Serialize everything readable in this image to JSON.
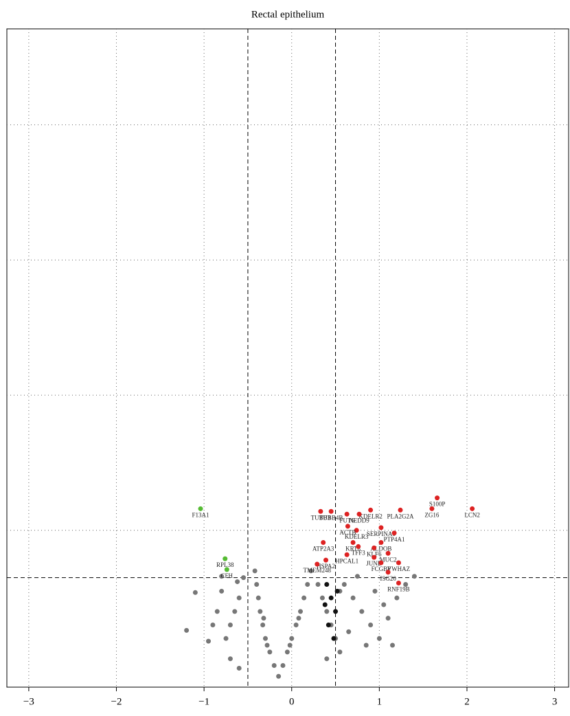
{
  "chart_data": {
    "type": "scatter",
    "title": "Rectal epithelium",
    "xlim": [
      -3.25,
      3.16
    ],
    "ylim": [
      -0.16,
      4.71
    ],
    "xticks": [
      {
        "value": -3,
        "label": "−3"
      },
      {
        "value": -2,
        "label": "−2"
      },
      {
        "value": -1,
        "label": "−1"
      },
      0,
      1,
      2,
      3
    ],
    "ygrid": [
      1,
      2,
      3,
      4
    ],
    "xthresholds": [
      -0.5,
      0.5
    ],
    "ythreshold": 0.65,
    "grid": true,
    "series": [
      {
        "color": "#777777",
        "x": [
          -0.15,
          -0.2,
          -0.1,
          -0.25,
          -0.05,
          -0.3,
          0.0,
          -0.33,
          0.05,
          -0.36,
          0.1,
          -0.38,
          0.14,
          -0.4,
          0.18,
          -0.42,
          0.22,
          -0.28,
          -0.02,
          -0.32,
          0.08,
          -0.55,
          -0.6,
          -0.65,
          -0.7,
          -0.75,
          -0.8,
          -0.85,
          -0.9,
          -0.95,
          -0.7,
          -0.6,
          -1.1,
          -1.2,
          -0.62,
          -0.8,
          0.3,
          0.35,
          0.4,
          0.45,
          0.5,
          0.55,
          0.6,
          0.7,
          0.8,
          0.9,
          1.0,
          1.1,
          1.2,
          1.15,
          1.3,
          1.4,
          0.55,
          0.75,
          0.95,
          0.65,
          0.85,
          1.05,
          0.4
        ],
        "y": [
          -0.08,
          0.0,
          0.0,
          0.1,
          0.1,
          0.2,
          0.2,
          0.3,
          0.3,
          0.4,
          0.4,
          0.5,
          0.5,
          0.6,
          0.6,
          0.7,
          0.7,
          0.15,
          0.15,
          0.35,
          0.35,
          0.65,
          0.5,
          0.4,
          0.3,
          0.2,
          0.55,
          0.4,
          0.3,
          0.18,
          0.05,
          -0.02,
          0.54,
          0.26,
          0.62,
          0.66,
          0.6,
          0.5,
          0.4,
          0.3,
          0.2,
          0.1,
          0.6,
          0.5,
          0.4,
          0.3,
          0.2,
          0.35,
          0.5,
          0.15,
          0.6,
          0.66,
          0.55,
          0.66,
          0.55,
          0.25,
          0.15,
          0.45,
          0.05
        ]
      },
      {
        "color": "#111111",
        "x": [
          0.4,
          0.45,
          0.5,
          0.42,
          0.48,
          0.52,
          0.38
        ],
        "y": [
          0.6,
          0.5,
          0.4,
          0.3,
          0.2,
          0.55,
          0.45
        ]
      },
      {
        "color": "#55bb33",
        "x": [
          -1.04,
          -0.76,
          -0.74
        ],
        "y": [
          1.16,
          0.79,
          0.71
        ],
        "labels": [
          "F13A1",
          "RPL38",
          "CFH"
        ]
      },
      {
        "color": "#dd2222",
        "x": [
          1.66,
          2.06,
          1.6,
          1.24,
          0.9,
          0.77,
          1.02,
          1.17,
          0.74,
          1.02,
          0.7,
          0.94,
          1.1,
          0.76,
          0.94,
          0.63,
          1.02,
          1.22,
          1.1,
          0.39,
          0.36,
          0.33,
          0.45,
          0.63,
          0.64,
          0.29,
          1.22
        ],
        "y": [
          1.24,
          1.16,
          1.16,
          1.15,
          1.15,
          1.12,
          1.02,
          0.98,
          1.0,
          0.91,
          0.91,
          0.87,
          0.83,
          0.88,
          0.8,
          0.82,
          0.76,
          0.76,
          0.69,
          0.78,
          0.91,
          1.14,
          1.14,
          1.12,
          1.03,
          0.75,
          0.61
        ],
        "labels": [
          "S100P",
          "LCN2",
          "ZG16",
          "PLA2G2A",
          "KDELR2",
          "NEDD9",
          "SERPINA1",
          "PTP4A1",
          "KDELR3",
          "ALDOB",
          "KRT8",
          "KLF6",
          "MUC2",
          "TFF3",
          "JUND",
          "HPCAL1",
          "FCGBP",
          "YWHAZ",
          "ISG20",
          "HSPA2",
          "ATP2A3",
          "TUBB3",
          "TUBB4B",
          "FUT6",
          "ACTB",
          "TMEM248",
          "RNF19B"
        ]
      }
    ]
  }
}
